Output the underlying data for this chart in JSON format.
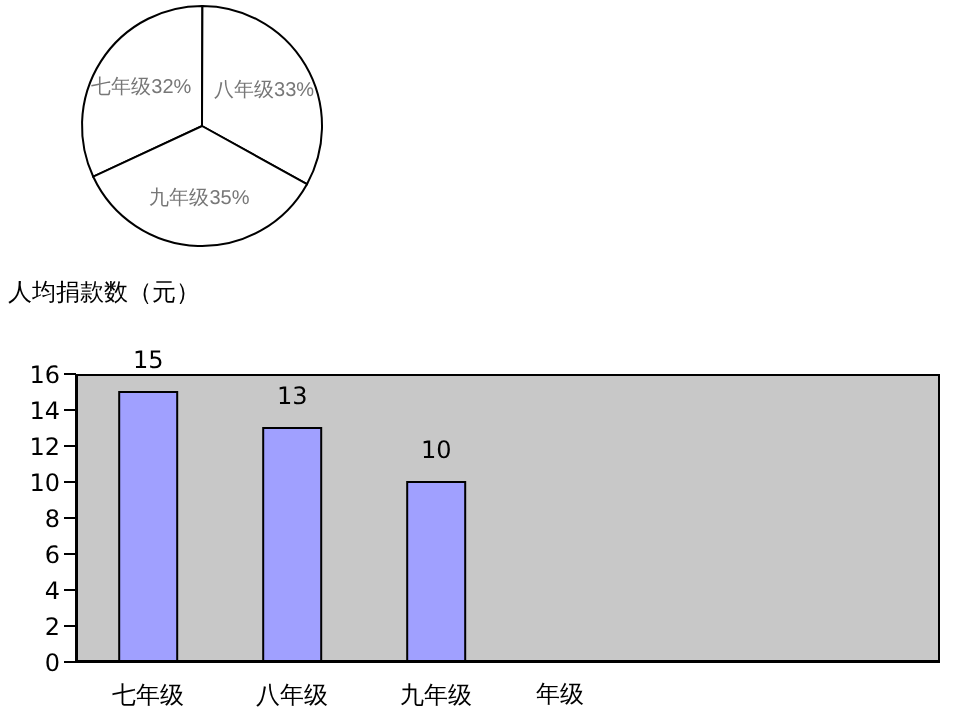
{
  "chart_data": [
    {
      "type": "pie",
      "categories": [
        "七年级",
        "八年级",
        "九年级"
      ],
      "values": [
        32,
        33,
        35
      ],
      "colors": [
        "#ffffff",
        "#ffffff",
        "#ffffff"
      ],
      "value_labels": [
        "32%",
        "33%",
        "35%"
      ]
    },
    {
      "type": "bar",
      "ylabel": "人均捐款数（元）",
      "xlabel": "年级",
      "categories": [
        "七年级",
        "八年级",
        "九年级",
        null,
        null,
        null
      ],
      "values": [
        15,
        13,
        10,
        null,
        null,
        null
      ],
      "color": "#a0a0ff",
      "ylim": [
        0,
        16
      ],
      "yticks": [
        0,
        2,
        4,
        6,
        8,
        10,
        12,
        14,
        16
      ],
      "data_labels": true,
      "grid": false
    }
  ]
}
